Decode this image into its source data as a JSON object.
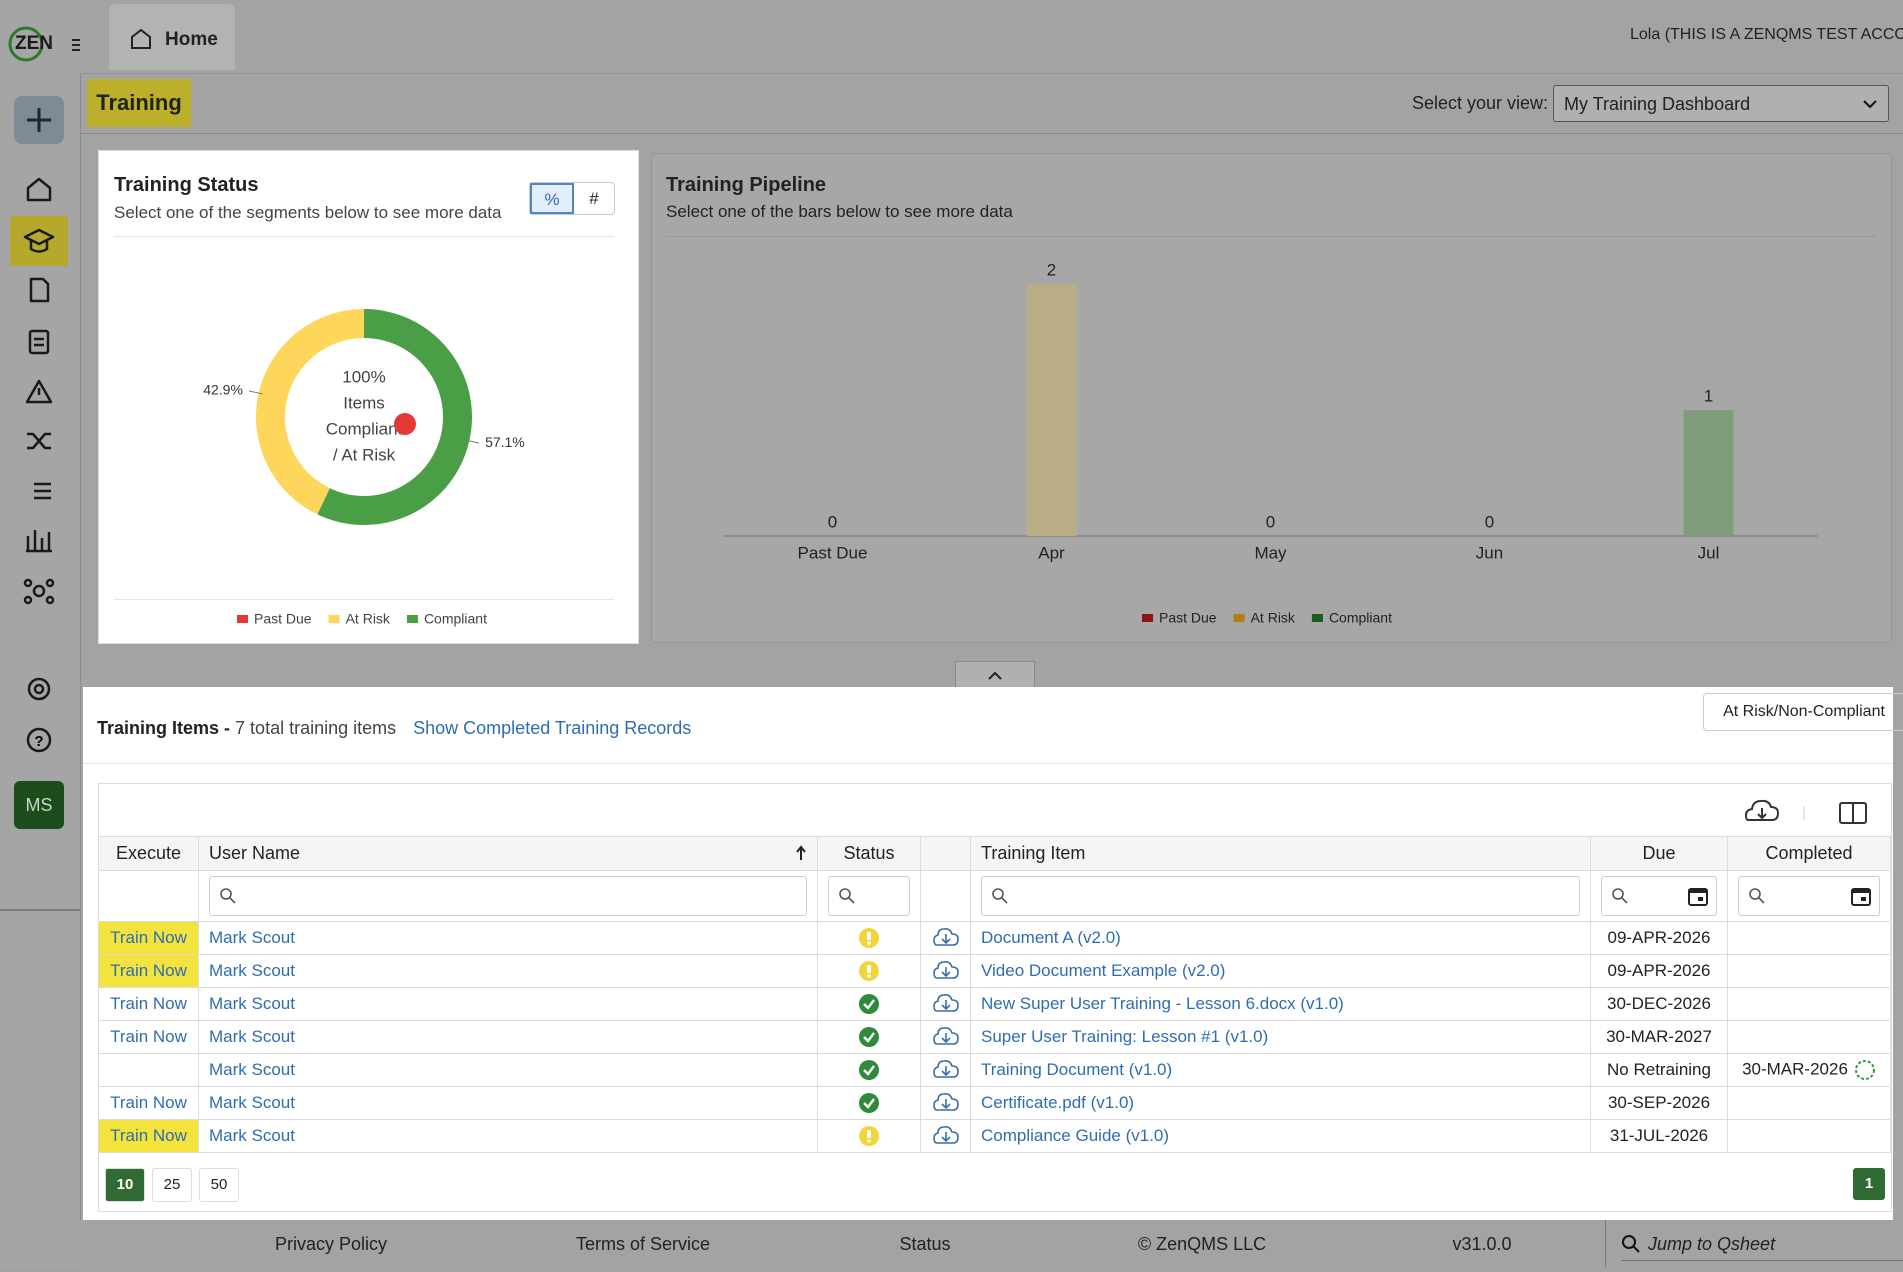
{
  "header": {
    "logo": "ZEN",
    "tab": "Home",
    "account": "Lola (THIS IS A ZENQMS TEST ACCOUNT"
  },
  "sidebar": {
    "avatar": "MS"
  },
  "page": {
    "title": "Training",
    "view_label": "Select your view:",
    "view": "My Training Dashboard"
  },
  "chart_data": [
    {
      "type": "pie",
      "title": "Training Status",
      "subtitle": "Select one of the segments below to see more data",
      "toggle": [
        "%",
        "#"
      ],
      "center_text": [
        "100%",
        "Items",
        "Compliant",
        "/ At Risk"
      ],
      "categories": [
        "Past Due",
        "At Risk",
        "Compliant"
      ],
      "values": [
        0,
        42.9,
        57.1
      ],
      "value_labels": [
        null,
        "42.9%",
        "57.1%"
      ],
      "colors": [
        "#e53935",
        "#fdd65b",
        "#4a9e46"
      ]
    },
    {
      "type": "bar",
      "title": "Training Pipeline",
      "subtitle": "Select one of the bars below to see more data",
      "categories": [
        "Past Due",
        "Apr",
        "May",
        "Jun",
        "Jul"
      ],
      "values": [
        0,
        2,
        0,
        0,
        1
      ],
      "colors": [
        "#7a7a7a",
        "#b8ad84",
        "#7a7a7a",
        "#7a7a7a",
        "#809c7c"
      ],
      "legend": [
        {
          "name": "Past Due",
          "color": "#8e1515"
        },
        {
          "name": "At Risk",
          "color": "#b57f0f"
        },
        {
          "name": "Compliant",
          "color": "#1f5a1f"
        }
      ]
    }
  ],
  "items": {
    "title": "Training Items -",
    "count_text": "7 total training items",
    "link": "Show Completed Training Records",
    "filter_button": "At Risk/Non-Compliant",
    "columns": [
      "Execute",
      "User Name",
      "Status",
      null,
      "Training Item",
      "Due",
      "Completed"
    ],
    "rows": [
      {
        "execute": "Train Now",
        "user": "Mark Scout",
        "status": "at-risk",
        "item": "Document A (v2.0)",
        "due": "09-APR-2026",
        "completed": null,
        "highlight": true
      },
      {
        "execute": "Train Now",
        "user": "Mark Scout",
        "status": "at-risk",
        "item": "Video Document Example (v2.0)",
        "due": "09-APR-2026",
        "completed": null,
        "highlight": true
      },
      {
        "execute": "Train Now",
        "user": "Mark Scout",
        "status": "compliant",
        "item": "New Super User Training - Lesson 6.docx (v1.0)",
        "due": "30-DEC-2026",
        "completed": null,
        "highlight": false
      },
      {
        "execute": "Train Now",
        "user": "Mark Scout",
        "status": "compliant",
        "item": "Super User Training: Lesson #1 (v1.0)",
        "due": "30-MAR-2027",
        "completed": null,
        "highlight": false
      },
      {
        "execute": null,
        "user": "Mark Scout",
        "status": "compliant",
        "item": "Training Document (v1.0)",
        "due": "No Retraining",
        "completed": "30-MAR-2026",
        "highlight": false
      },
      {
        "execute": "Train Now",
        "user": "Mark Scout",
        "status": "compliant",
        "item": "Certificate.pdf (v1.0)",
        "due": "30-SEP-2026",
        "completed": null,
        "highlight": false
      },
      {
        "execute": "Train Now",
        "user": "Mark Scout",
        "status": "at-risk",
        "item": "Compliance Guide (v1.0)",
        "due": "31-JUL-2026",
        "completed": null,
        "highlight": true
      }
    ],
    "page_sizes": [
      10,
      25,
      50
    ],
    "page_size": 10,
    "pages": [
      1
    ]
  },
  "footer": {
    "links": [
      "Privacy Policy",
      "Terms of Service",
      "Status",
      "© ZenQMS LLC",
      "v31.0.0"
    ],
    "search": "Jump to Qsheet"
  }
}
